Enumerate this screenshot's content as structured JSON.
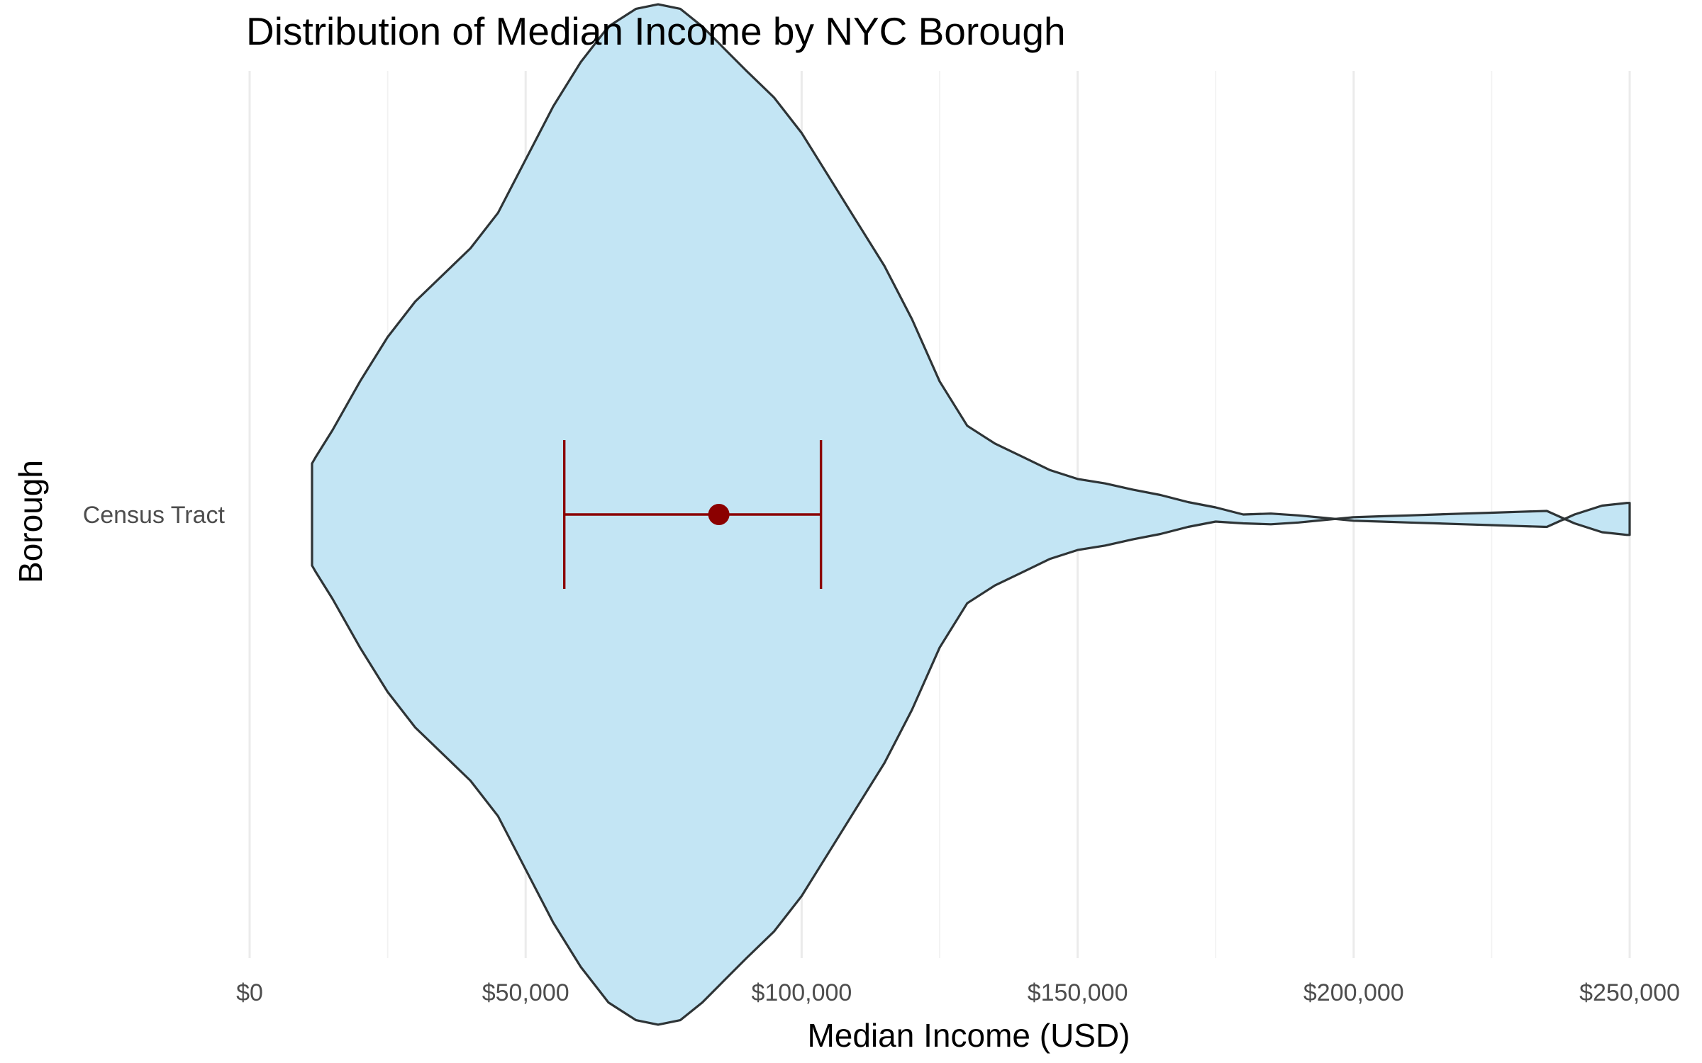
{
  "chart_data": {
    "type": "violin",
    "title": "Distribution of Median Income by NYC Borough",
    "xlabel": "Median Income (USD)",
    "ylabel": "Borough",
    "categories": [
      "Census Tract"
    ],
    "xlim": [
      0,
      250000
    ],
    "x_ticks": [
      0,
      50000,
      100000,
      150000,
      200000,
      250000
    ],
    "x_tick_labels": [
      "$0",
      "$50,000",
      "$100,000",
      "$150,000",
      "$200,000",
      "$250,000"
    ],
    "x_minor_ticks": [
      25000,
      75000,
      125000,
      175000,
      225000
    ],
    "grid": true,
    "density": {
      "x": [
        11300,
        12000,
        15000,
        20000,
        25000,
        30000,
        35000,
        40000,
        45000,
        50000,
        55000,
        60000,
        65000,
        70000,
        74000,
        78000,
        82000,
        86000,
        90000,
        95000,
        100000,
        105000,
        110000,
        115000,
        120000,
        125000,
        130000,
        135000,
        140000,
        145000,
        150000,
        155000,
        160000,
        165000,
        170000,
        175000,
        180000,
        185000,
        190000,
        195000,
        200000,
        205000,
        210000,
        215000,
        220000,
        225000,
        230000,
        235000,
        240000,
        245000,
        249500,
        250000
      ],
      "half_width": [
        0.0575,
        0.065,
        0.095,
        0.15,
        0.2,
        0.24,
        0.27,
        0.3,
        0.34,
        0.4,
        0.46,
        0.51,
        0.55,
        0.57,
        0.575,
        0.57,
        0.55,
        0.525,
        0.5,
        0.47,
        0.43,
        0.38,
        0.33,
        0.28,
        0.22,
        0.15,
        0.1,
        0.08,
        0.065,
        0.05,
        0.04,
        0.035,
        0.028,
        0.022,
        0.014,
        0.008,
        0.005,
        0.006,
        0.004,
        0.001,
        -0.002,
        -0.003,
        -0.004,
        -0.005,
        -0.006,
        -0.007,
        -0.008,
        -0.009,
        0.005,
        0.015,
        0.018,
        0.018
      ],
      "center_offset": [
        0,
        0,
        0,
        0,
        0,
        0,
        0,
        0,
        0,
        0,
        0,
        0,
        0,
        0,
        0,
        0,
        0,
        0,
        0,
        0,
        0,
        0,
        0,
        0,
        0,
        0,
        0,
        0,
        0,
        0,
        0,
        0,
        0,
        0,
        0,
        0,
        0.005,
        0.005,
        0.005,
        0.005,
        0.005,
        0.005,
        0.005,
        0.005,
        0.005,
        0.005,
        0.005,
        0.005,
        0.005,
        0.005,
        0.005,
        0.005
      ]
    },
    "mean": 85000,
    "error_bar": [
      57000,
      103500
    ],
    "colors": {
      "violin_fill": "#c3e5f4",
      "violin_stroke": "#2e3436",
      "mean_and_error": "#8b0000"
    }
  }
}
